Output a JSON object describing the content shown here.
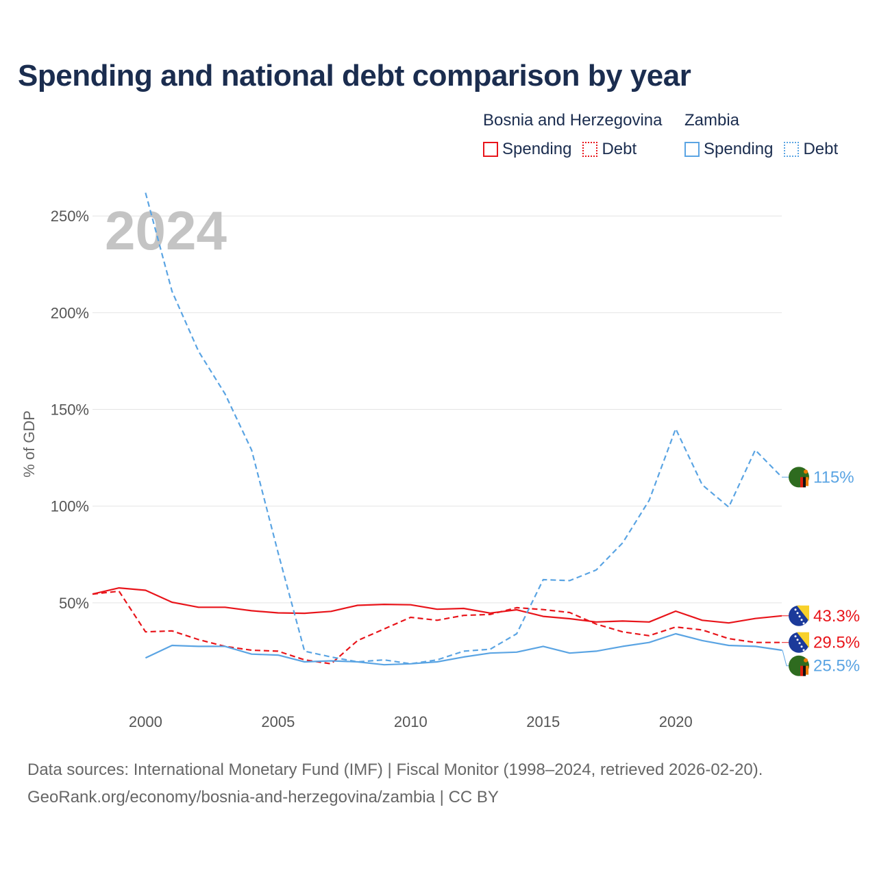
{
  "title": "Spending and national debt comparison by year",
  "colors": {
    "bih": "#e8141a",
    "zambia": "#5aa4e3",
    "title": "#1b2d4f",
    "grid": "#e4e4e4",
    "watermark": "#c4c4c4"
  },
  "legend": {
    "groups": [
      {
        "title": "Bosnia and Herzegovina",
        "color": "#e8141a",
        "items": [
          {
            "label": "Spending",
            "style": "solid"
          },
          {
            "label": "Debt",
            "style": "dotted"
          }
        ]
      },
      {
        "title": "Zambia",
        "color": "#5aa4e3",
        "items": [
          {
            "label": "Spending",
            "style": "solid"
          },
          {
            "label": "Debt",
            "style": "dotted"
          }
        ]
      }
    ]
  },
  "source": {
    "line1": "Data sources: International Monetary Fund (IMF) | Fiscal Monitor (1998–2024, retrieved 2026-02-20).",
    "line2": "GeoRank.org/economy/bosnia-and-herzegovina/zambia | CC BY"
  },
  "chart_data": {
    "type": "line",
    "year_watermark": "2024",
    "ylabel": "% of GDP",
    "xlim": [
      1998,
      2024
    ],
    "ylim": [
      0,
      260
    ],
    "x_ticks": [
      2000,
      2005,
      2010,
      2015,
      2020
    ],
    "y_ticks": [
      50,
      100,
      150,
      200,
      250
    ],
    "y_tick_labels": [
      "50%",
      "100%",
      "150%",
      "200%",
      "250%"
    ],
    "series": [
      {
        "name": "Bosnia and Herzegovina Spending",
        "country": "bih",
        "dashed": false,
        "color": "#e8141a",
        "end_label": "43.3%",
        "x": [
          1998,
          1999,
          2000,
          2001,
          2002,
          2003,
          2004,
          2005,
          2006,
          2007,
          2008,
          2009,
          2010,
          2011,
          2012,
          2013,
          2014,
          2015,
          2016,
          2017,
          2018,
          2019,
          2020,
          2021,
          2022,
          2023,
          2024
        ],
        "values": [
          54.5,
          57.7,
          56.5,
          50.3,
          47.7,
          47.7,
          45.9,
          44.8,
          44.6,
          45.6,
          48.7,
          49.2,
          49.0,
          46.7,
          47.1,
          44.7,
          46.4,
          43.0,
          41.8,
          40.1,
          40.6,
          40.1,
          45.7,
          41.0,
          39.6,
          41.9,
          43.3
        ]
      },
      {
        "name": "Bosnia and Herzegovina Debt",
        "country": "bih",
        "dashed": true,
        "color": "#e8141a",
        "end_label": "29.5%",
        "x": [
          1998,
          1999,
          2000,
          2001,
          2002,
          2003,
          2004,
          2005,
          2006,
          2007,
          2008,
          2009,
          2010,
          2011,
          2012,
          2013,
          2014,
          2015,
          2016,
          2017,
          2018,
          2019,
          2020,
          2021,
          2022,
          2023,
          2024
        ],
        "values": [
          54.5,
          56.0,
          35.0,
          35.5,
          31.0,
          27.5,
          25.5,
          25.0,
          20.5,
          18.5,
          30.5,
          36.5,
          42.5,
          41.0,
          43.5,
          44.0,
          47.5,
          46.5,
          45.0,
          39.0,
          35.0,
          33.0,
          37.5,
          36.0,
          31.5,
          29.5,
          29.5
        ]
      },
      {
        "name": "Zambia Spending",
        "country": "zambia",
        "dashed": false,
        "color": "#5aa4e3",
        "end_label": "25.5%",
        "x": [
          2000,
          2001,
          2002,
          2003,
          2004,
          2005,
          2006,
          2007,
          2008,
          2009,
          2010,
          2011,
          2012,
          2013,
          2014,
          2015,
          2016,
          2017,
          2018,
          2019,
          2020,
          2021,
          2022,
          2023,
          2024
        ],
        "values": [
          21.5,
          28.0,
          27.5,
          27.5,
          23.5,
          23.0,
          19.5,
          20.0,
          19.5,
          18.0,
          18.5,
          19.5,
          22.0,
          24.0,
          24.5,
          27.5,
          24.0,
          25.0,
          27.5,
          29.5,
          34.0,
          30.5,
          28.0,
          27.5,
          25.5
        ]
      },
      {
        "name": "Zambia Debt",
        "country": "zambia",
        "dashed": true,
        "color": "#5aa4e3",
        "end_label": "115%",
        "x": [
          2000,
          2001,
          2002,
          2003,
          2004,
          2005,
          2006,
          2007,
          2008,
          2009,
          2010,
          2011,
          2012,
          2013,
          2014,
          2015,
          2016,
          2017,
          2018,
          2019,
          2020,
          2021,
          2022,
          2023,
          2024
        ],
        "values": [
          262,
          211,
          180,
          158,
          129,
          76,
          25,
          22,
          19.5,
          20.5,
          18.5,
          20.5,
          25,
          26,
          34,
          62,
          61.5,
          67,
          81,
          103,
          140,
          111,
          99.5,
          129,
          115
        ]
      }
    ]
  }
}
